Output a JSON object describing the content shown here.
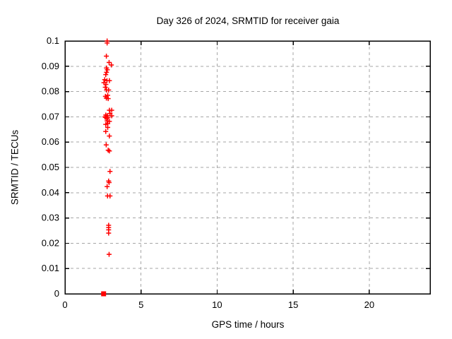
{
  "window": {
    "background": "#ffffff"
  },
  "chart_data": {
    "type": "scatter",
    "title": "Day 326 of 2024, SRMTID for receiver gaia",
    "xlabel": "GPS time / hours",
    "ylabel": "SRMTID / TECUs",
    "xlim": [
      0,
      24
    ],
    "ylim": [
      0,
      0.1
    ],
    "xticks": {
      "values": [
        0,
        5,
        10,
        15,
        20
      ],
      "labels": [
        "0",
        "5",
        "10",
        "15",
        "20"
      ]
    },
    "yticks": {
      "values": [
        0,
        0.01,
        0.02,
        0.03,
        0.04,
        0.05,
        0.06,
        0.07,
        0.08,
        0.09,
        0.1
      ],
      "labels": [
        "0",
        "0.01",
        "0.02",
        "0.03",
        "0.04",
        "0.05",
        "0.06",
        "0.07",
        "0.08",
        "0.09",
        "0.1"
      ]
    },
    "grid": true,
    "legend": "none",
    "series": [
      {
        "name": "SRMTID",
        "marker": "plus",
        "color": "#ff0000",
        "points": [
          [
            2.77,
            0.1
          ],
          [
            2.77,
            0.0992
          ],
          [
            2.72,
            0.094
          ],
          [
            2.9,
            0.0915
          ],
          [
            3.05,
            0.0905
          ],
          [
            2.73,
            0.0893
          ],
          [
            2.78,
            0.0886
          ],
          [
            2.73,
            0.0876
          ],
          [
            2.68,
            0.0867
          ],
          [
            2.61,
            0.0847
          ],
          [
            2.76,
            0.0843
          ],
          [
            2.92,
            0.0843
          ],
          [
            2.56,
            0.0835
          ],
          [
            2.69,
            0.0828
          ],
          [
            2.65,
            0.0817
          ],
          [
            2.73,
            0.0806
          ],
          [
            2.87,
            0.0806
          ],
          [
            2.81,
            0.0785
          ],
          [
            2.66,
            0.0781
          ],
          [
            2.72,
            0.0774
          ],
          [
            2.84,
            0.0772
          ],
          [
            2.92,
            0.0726
          ],
          [
            3.07,
            0.0726
          ],
          [
            2.96,
            0.0713
          ],
          [
            2.68,
            0.0707
          ],
          [
            2.77,
            0.0704
          ],
          [
            3.07,
            0.0704
          ],
          [
            2.63,
            0.07
          ],
          [
            2.66,
            0.0698
          ],
          [
            2.82,
            0.0697
          ],
          [
            2.74,
            0.0694
          ],
          [
            2.77,
            0.0684
          ],
          [
            2.92,
            0.0682
          ],
          [
            2.81,
            0.0673
          ],
          [
            2.68,
            0.067
          ],
          [
            2.81,
            0.0658
          ],
          [
            2.68,
            0.0642
          ],
          [
            2.92,
            0.0624
          ],
          [
            2.71,
            0.0589
          ],
          [
            2.84,
            0.0568
          ],
          [
            2.92,
            0.0565
          ],
          [
            2.96,
            0.0484
          ],
          [
            2.87,
            0.0446
          ],
          [
            2.9,
            0.044
          ],
          [
            2.77,
            0.0424
          ],
          [
            2.8,
            0.0387
          ],
          [
            2.96,
            0.0387
          ],
          [
            2.87,
            0.0271
          ],
          [
            2.87,
            0.0262
          ],
          [
            2.87,
            0.0253
          ],
          [
            2.87,
            0.024
          ],
          [
            2.9,
            0.0156
          ]
        ]
      },
      {
        "name": "SRMTID-zero",
        "marker": "filled-square",
        "color": "#ff0000",
        "points": [
          [
            2.54,
            0.0
          ]
        ]
      }
    ]
  },
  "colors": {
    "background": "#ffffff",
    "axis": "#000000",
    "grid": "#a6a6a6",
    "marker": "#ff0000"
  }
}
